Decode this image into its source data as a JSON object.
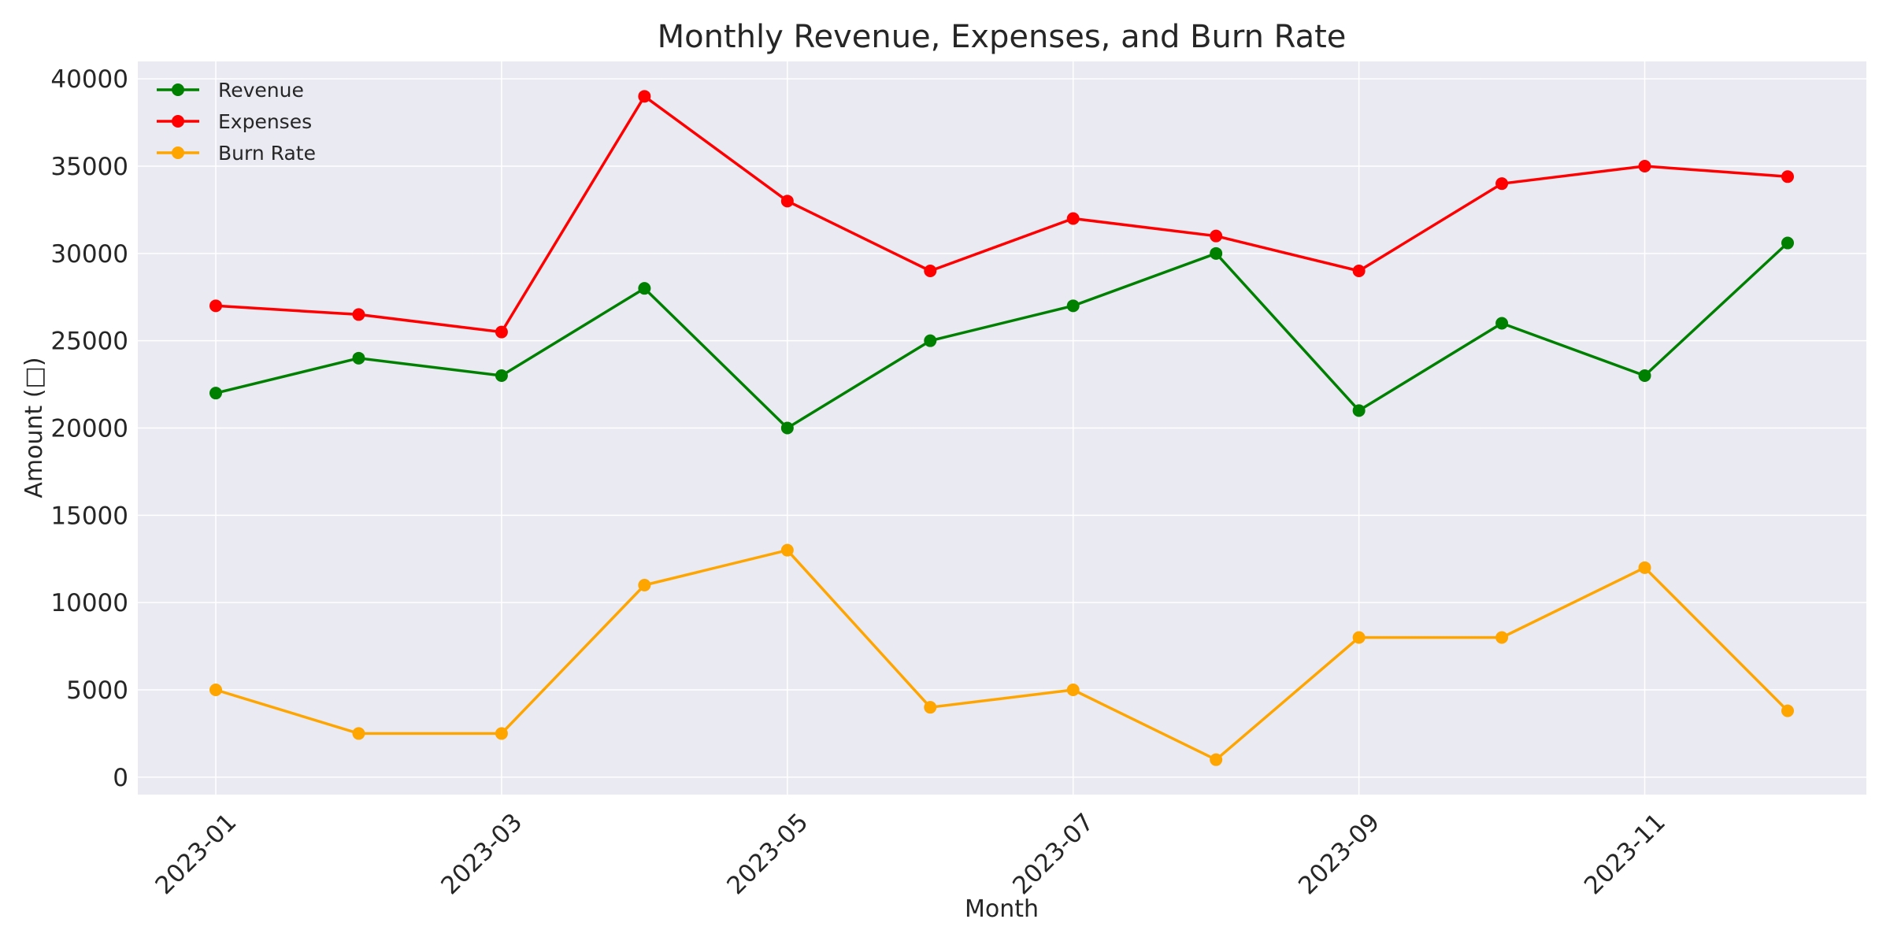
{
  "chart_data": {
    "type": "line",
    "title": "Monthly Revenue, Expenses, and Burn Rate",
    "xlabel": "Month",
    "ylabel": "Amount (□)",
    "x": [
      "2023-01",
      "2023-02",
      "2023-03",
      "2023-04",
      "2023-05",
      "2023-06",
      "2023-07",
      "2023-08",
      "2023-09",
      "2023-10",
      "2023-11",
      "2023-12"
    ],
    "x_tick_labels": [
      "2023-01",
      "2023-03",
      "2023-05",
      "2023-07",
      "2023-09",
      "2023-11"
    ],
    "y_ticks": [
      0,
      5000,
      10000,
      15000,
      20000,
      25000,
      30000,
      35000,
      40000
    ],
    "ylim": [
      -1000,
      41000
    ],
    "grid": true,
    "legend_position": "top-left",
    "background": "#eaeaf2",
    "series": [
      {
        "name": "Revenue",
        "color": "#008000",
        "values": [
          22000,
          24000,
          23000,
          28000,
          20000,
          25000,
          27000,
          30000,
          21000,
          26000,
          23000,
          30600
        ]
      },
      {
        "name": "Expenses",
        "color": "#ff0000",
        "values": [
          27000,
          26500,
          25500,
          39000,
          33000,
          29000,
          32000,
          31000,
          29000,
          34000,
          35000,
          34400
        ]
      },
      {
        "name": "Burn Rate",
        "color": "#ffa500",
        "values": [
          5000,
          2500,
          2500,
          11000,
          13000,
          4000,
          5000,
          1000,
          8000,
          8000,
          12000,
          3800
        ]
      }
    ]
  }
}
